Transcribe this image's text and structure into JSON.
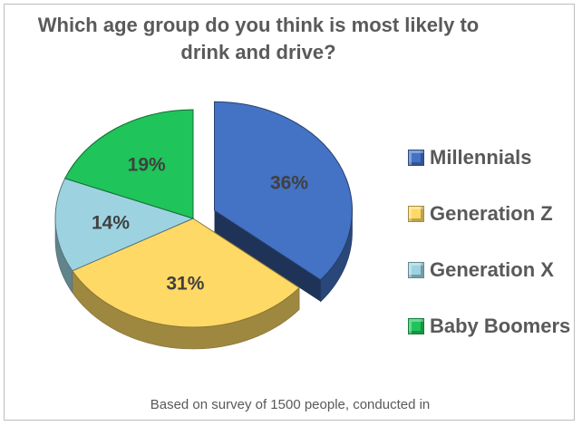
{
  "chart_data": {
    "type": "pie",
    "title": "Which age group do you think is most likely to drink and drive?",
    "slices": [
      {
        "label": "Millennials",
        "value": 36,
        "display": "36%",
        "color": "#4472c4",
        "exploded": true
      },
      {
        "label": "Generation Z",
        "value": 31,
        "display": "31%",
        "color": "#ffd966",
        "exploded": false
      },
      {
        "label": "Generation X",
        "value": 14,
        "display": "14%",
        "color": "#9dd3e0",
        "exploded": false
      },
      {
        "label": "Baby Boomers",
        "value": 19,
        "display": "19%",
        "color": "#1fc45a",
        "exploded": false
      }
    ],
    "legend_position": "right"
  },
  "footnote": "Based on survey of 1500 people, conducted in"
}
